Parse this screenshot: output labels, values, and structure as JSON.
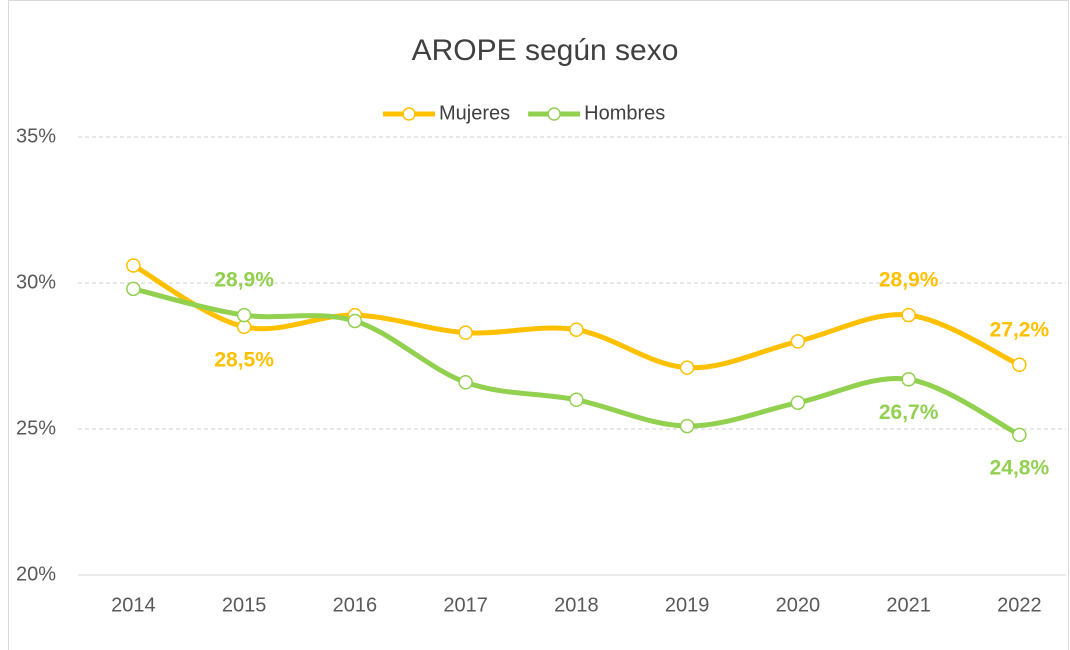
{
  "chart_data": {
    "type": "line",
    "title": "AROPE según sexo",
    "categories": [
      "2014",
      "2015",
      "2016",
      "2017",
      "2018",
      "2019",
      "2020",
      "2021",
      "2022"
    ],
    "series": [
      {
        "name": "Mujeres",
        "color": "#FFC000",
        "values": [
          30.6,
          28.5,
          28.9,
          28.3,
          28.4,
          27.1,
          28.0,
          28.9,
          27.2
        ],
        "value_labels": [
          null,
          "28,5%",
          null,
          null,
          null,
          null,
          null,
          "28,9%",
          "27,2%"
        ]
      },
      {
        "name": "Hombres",
        "color": "#92D050",
        "values": [
          29.8,
          28.9,
          28.7,
          26.6,
          26.0,
          25.1,
          25.9,
          26.7,
          24.8
        ],
        "value_labels": [
          null,
          "28,9%",
          null,
          null,
          null,
          null,
          null,
          "26,7%",
          "24,8%"
        ]
      }
    ],
    "ylim": [
      20,
      35
    ],
    "yticks": [
      {
        "value": 20,
        "label": "20%"
      },
      {
        "value": 25,
        "label": "25%"
      },
      {
        "value": 30,
        "label": "30%"
      },
      {
        "value": 35,
        "label": "35%"
      }
    ],
    "grid": true,
    "legend": "top"
  }
}
